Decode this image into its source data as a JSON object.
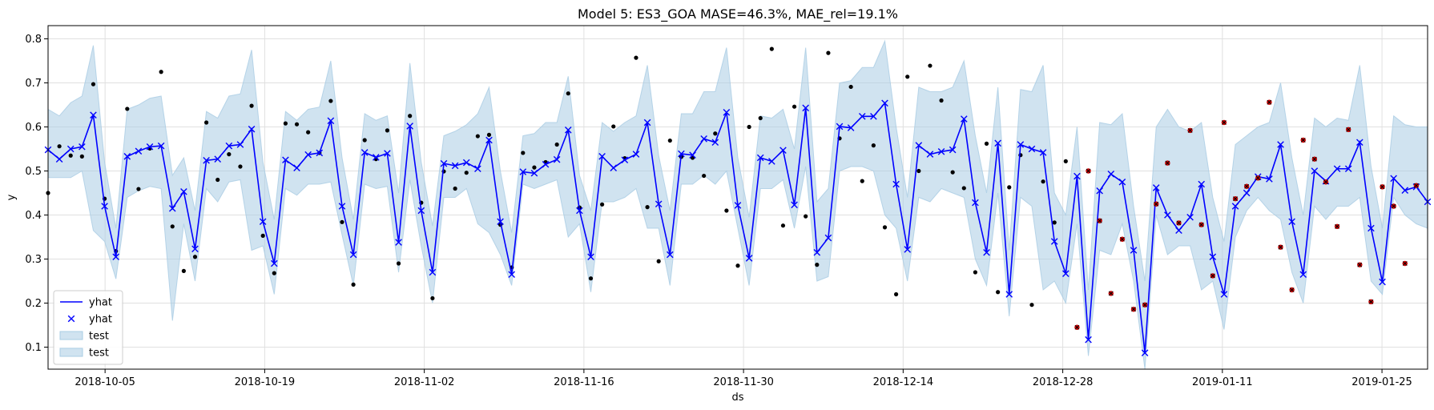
{
  "chart_data": {
    "type": "line",
    "title": "Model 5: ES3_GOA MASE=46.3%, MAE_rel=19.1%",
    "xlabel": "ds",
    "ylabel": "y",
    "x_start": "2018-09-30",
    "x_end": "2019-01-29",
    "ylim": [
      0.05,
      0.83
    ],
    "yticks": [
      0.1,
      0.2,
      0.3,
      0.4,
      0.5,
      0.6,
      0.7,
      0.8
    ],
    "ytick_labels": [
      "0.1",
      "0.2",
      "0.3",
      "0.4",
      "0.5",
      "0.6",
      "0.7",
      "0.8"
    ],
    "xticks": [
      "2018-10-05",
      "2018-10-19",
      "2018-11-02",
      "2018-11-16",
      "2018-11-30",
      "2018-12-14",
      "2018-12-28",
      "2019-01-11",
      "2019-01-25"
    ],
    "grid": true,
    "legend_position": "lower-left",
    "legend": [
      {
        "label": "yhat",
        "kind": "line"
      },
      {
        "label": "yhat",
        "kind": "marker"
      },
      {
        "label": "test",
        "kind": "band"
      },
      {
        "label": "test",
        "kind": "band"
      }
    ],
    "colors": {
      "yhat": "#0000ff",
      "band": "#a9cce3",
      "band_opacity": 0.55,
      "train_points": "#000000",
      "test_points": "#cc0000"
    },
    "yhat": [
      0.548,
      0.527,
      0.55,
      0.555,
      0.627,
      0.42,
      0.305,
      0.533,
      0.545,
      0.555,
      0.557,
      0.415,
      0.453,
      0.323,
      0.524,
      0.527,
      0.557,
      0.56,
      0.595,
      0.385,
      0.29,
      0.525,
      0.507,
      0.537,
      0.541,
      0.614,
      0.42,
      0.31,
      0.542,
      0.531,
      0.54,
      0.338,
      0.602,
      0.41,
      0.27,
      0.517,
      0.512,
      0.519,
      0.505,
      0.57,
      0.385,
      0.265,
      0.498,
      0.495,
      0.515,
      0.526,
      0.593,
      0.41,
      0.305,
      0.533,
      0.507,
      0.525,
      0.538,
      0.61,
      0.425,
      0.31,
      0.539,
      0.536,
      0.573,
      0.565,
      0.633,
      0.422,
      0.302,
      0.53,
      0.522,
      0.547,
      0.423,
      0.643,
      0.315,
      0.348,
      0.601,
      0.598,
      0.624,
      0.624,
      0.654,
      0.47,
      0.322,
      0.558,
      0.538,
      0.544,
      0.548,
      0.618,
      0.428,
      0.315,
      0.563,
      0.22,
      0.56,
      0.55,
      0.542,
      0.34,
      0.267,
      0.488,
      0.117,
      0.455,
      0.493,
      0.475,
      0.32,
      0.087,
      0.462,
      0.4,
      0.365,
      0.395,
      0.47,
      0.305,
      0.22,
      0.42,
      0.45,
      0.487,
      0.482,
      0.56,
      0.385,
      0.265,
      0.5,
      0.477,
      0.505,
      0.505,
      0.565,
      0.37,
      0.248,
      0.483,
      0.456,
      0.464,
      0.43
    ],
    "band_upper": [
      0.64,
      0.625,
      0.655,
      0.67,
      0.785,
      0.52,
      0.37,
      0.64,
      0.65,
      0.665,
      0.67,
      0.49,
      0.53,
      0.41,
      0.635,
      0.62,
      0.67,
      0.675,
      0.775,
      0.52,
      0.39,
      0.635,
      0.615,
      0.64,
      0.645,
      0.75,
      0.53,
      0.39,
      0.63,
      0.615,
      0.625,
      0.45,
      0.745,
      0.52,
      0.375,
      0.58,
      0.59,
      0.605,
      0.63,
      0.69,
      0.5,
      0.36,
      0.58,
      0.585,
      0.61,
      0.61,
      0.715,
      0.49,
      0.41,
      0.61,
      0.59,
      0.61,
      0.625,
      0.74,
      0.535,
      0.41,
      0.63,
      0.63,
      0.68,
      0.68,
      0.78,
      0.53,
      0.395,
      0.625,
      0.62,
      0.64,
      0.55,
      0.78,
      0.43,
      0.46,
      0.7,
      0.705,
      0.735,
      0.735,
      0.795,
      0.6,
      0.44,
      0.69,
      0.68,
      0.68,
      0.69,
      0.75,
      0.58,
      0.45,
      0.69,
      0.32,
      0.685,
      0.68,
      0.74,
      0.45,
      0.4,
      0.6,
      0.23,
      0.61,
      0.605,
      0.63,
      0.42,
      0.25,
      0.6,
      0.64,
      0.6,
      0.59,
      0.61,
      0.44,
      0.34,
      0.56,
      0.58,
      0.6,
      0.61,
      0.7,
      0.53,
      0.4,
      0.62,
      0.6,
      0.62,
      0.615,
      0.74,
      0.51,
      0.37,
      0.625,
      0.605,
      0.6,
      0.6
    ],
    "band_lower": [
      0.485,
      0.485,
      0.485,
      0.5,
      0.365,
      0.34,
      0.255,
      0.44,
      0.455,
      0.465,
      0.46,
      0.16,
      0.38,
      0.25,
      0.46,
      0.43,
      0.475,
      0.48,
      0.32,
      0.33,
      0.22,
      0.46,
      0.445,
      0.47,
      0.47,
      0.475,
      0.355,
      0.24,
      0.47,
      0.46,
      0.465,
      0.27,
      0.48,
      0.33,
      0.2,
      0.44,
      0.44,
      0.46,
      0.38,
      0.36,
      0.31,
      0.24,
      0.47,
      0.46,
      0.47,
      0.48,
      0.35,
      0.38,
      0.225,
      0.43,
      0.43,
      0.44,
      0.46,
      0.37,
      0.37,
      0.24,
      0.47,
      0.47,
      0.49,
      0.47,
      0.5,
      0.37,
      0.24,
      0.46,
      0.46,
      0.48,
      0.37,
      0.51,
      0.25,
      0.26,
      0.5,
      0.51,
      0.51,
      0.5,
      0.4,
      0.37,
      0.25,
      0.44,
      0.43,
      0.46,
      0.45,
      0.44,
      0.3,
      0.24,
      0.45,
      0.17,
      0.44,
      0.42,
      0.23,
      0.25,
      0.2,
      0.38,
      0.08,
      0.32,
      0.31,
      0.38,
      0.25,
      0.05,
      0.4,
      0.31,
      0.33,
      0.33,
      0.23,
      0.25,
      0.14,
      0.35,
      0.41,
      0.44,
      0.41,
      0.39,
      0.27,
      0.2,
      0.42,
      0.39,
      0.42,
      0.42,
      0.44,
      0.25,
      0.22,
      0.44,
      0.4,
      0.38,
      0.37
    ],
    "train_points": [
      [
        0,
        0.45
      ],
      [
        1,
        0.556
      ],
      [
        2,
        0.535
      ],
      [
        3,
        0.533
      ],
      [
        4,
        0.697
      ],
      [
        5,
        0.437
      ],
      [
        6,
        0.318
      ],
      [
        7,
        0.641
      ],
      [
        8,
        0.459
      ],
      [
        9,
        0.551
      ],
      [
        10,
        0.725
      ],
      [
        11,
        0.374
      ],
      [
        12,
        0.273
      ],
      [
        13,
        0.305
      ],
      [
        14,
        0.61
      ],
      [
        15,
        0.48
      ],
      [
        16,
        0.538
      ],
      [
        17,
        0.51
      ],
      [
        18,
        0.648
      ],
      [
        19,
        0.353
      ],
      [
        20,
        0.268
      ],
      [
        21,
        0.608
      ],
      [
        22,
        0.606
      ],
      [
        23,
        0.588
      ],
      [
        24,
        0.541
      ],
      [
        25,
        0.659
      ],
      [
        26,
        0.384
      ],
      [
        27,
        0.242
      ],
      [
        28,
        0.57
      ],
      [
        29,
        0.527
      ],
      [
        30,
        0.592
      ],
      [
        31,
        0.29
      ],
      [
        32,
        0.625
      ],
      [
        33,
        0.428
      ],
      [
        34,
        0.211
      ],
      [
        35,
        0.499
      ],
      [
        36,
        0.46
      ],
      [
        37,
        0.496
      ],
      [
        38,
        0.579
      ],
      [
        39,
        0.582
      ],
      [
        40,
        0.378
      ],
      [
        41,
        0.281
      ],
      [
        42,
        0.541
      ],
      [
        43,
        0.508
      ],
      [
        44,
        0.52
      ],
      [
        45,
        0.56
      ],
      [
        46,
        0.676
      ],
      [
        47,
        0.417
      ],
      [
        48,
        0.256
      ],
      [
        49,
        0.424
      ],
      [
        50,
        0.601
      ],
      [
        51,
        0.529
      ],
      [
        52,
        0.757
      ],
      [
        53,
        0.418
      ],
      [
        54,
        0.295
      ],
      [
        55,
        0.569
      ],
      [
        56,
        0.532
      ],
      [
        57,
        0.53
      ],
      [
        58,
        0.489
      ],
      [
        59,
        0.585
      ],
      [
        60,
        0.41
      ],
      [
        61,
        0.285
      ],
      [
        62,
        0.6
      ],
      [
        63,
        0.62
      ],
      [
        64,
        0.777
      ],
      [
        65,
        0.376
      ],
      [
        66,
        0.646
      ],
      [
        67,
        0.397
      ],
      [
        68,
        0.287
      ],
      [
        69,
        0.768
      ],
      [
        70,
        0.574
      ],
      [
        71,
        0.691
      ],
      [
        72,
        0.477
      ],
      [
        73,
        0.558
      ],
      [
        74,
        0.372
      ],
      [
        75,
        0.22
      ],
      [
        76,
        0.714
      ],
      [
        77,
        0.5
      ],
      [
        78,
        0.739
      ],
      [
        79,
        0.66
      ],
      [
        80,
        0.497
      ],
      [
        81,
        0.461
      ],
      [
        82,
        0.27
      ],
      [
        83,
        0.562
      ],
      [
        84,
        0.225
      ],
      [
        85,
        0.463
      ],
      [
        86,
        0.536
      ],
      [
        87,
        0.196
      ],
      [
        88,
        0.476
      ],
      [
        89,
        0.383
      ],
      [
        90,
        0.522
      ]
    ],
    "test_points": [
      [
        91,
        0.145
      ],
      [
        92,
        0.5
      ],
      [
        93,
        0.387
      ],
      [
        94,
        0.222
      ],
      [
        95,
        0.345
      ],
      [
        96,
        0.186
      ],
      [
        97,
        0.196
      ],
      [
        98,
        0.425
      ],
      [
        99,
        0.518
      ],
      [
        100,
        0.382
      ],
      [
        101,
        0.592
      ],
      [
        102,
        0.378
      ],
      [
        103,
        0.262
      ],
      [
        104,
        0.61
      ],
      [
        105,
        0.437
      ],
      [
        106,
        0.465
      ],
      [
        107,
        0.484
      ],
      [
        108,
        0.656
      ],
      [
        109,
        0.327
      ],
      [
        110,
        0.23
      ],
      [
        111,
        0.57
      ],
      [
        112,
        0.527
      ],
      [
        113,
        0.475
      ],
      [
        114,
        0.374
      ],
      [
        115,
        0.594
      ],
      [
        116,
        0.287
      ],
      [
        117,
        0.203
      ],
      [
        118,
        0.464
      ],
      [
        119,
        0.42
      ],
      [
        120,
        0.29
      ],
      [
        121,
        0.467
      ]
    ]
  }
}
